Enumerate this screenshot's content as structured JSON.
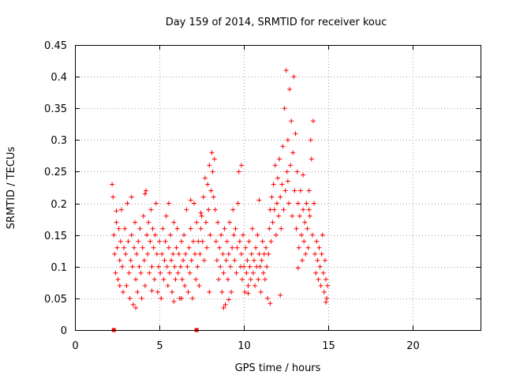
{
  "chart_data": {
    "type": "scatter",
    "title": "Day 159 of 2014, SRMTID for receiver kouc",
    "xlabel": "GPS time / hours",
    "ylabel": "SRMTID / TECUs",
    "xlim": [
      0,
      24
    ],
    "ylim": [
      0,
      0.45
    ],
    "x_ticks": [
      0,
      5,
      10,
      15,
      20
    ],
    "x_tick_labels": [
      "0",
      "5",
      "10",
      "15",
      "20"
    ],
    "y_ticks": [
      0,
      0.05,
      0.1,
      0.15,
      0.2,
      0.25,
      0.3,
      0.35,
      0.4,
      0.45
    ],
    "y_tick_labels": [
      "0",
      "0.05",
      "0.1",
      "0.15",
      "0.2",
      "0.25",
      "0.3",
      "0.35",
      "0.4",
      "0.45"
    ],
    "grid": true,
    "marker": "plus",
    "series": [
      {
        "name": "SRMTID",
        "color": "#ff0000",
        "points": [
          [
            2.2,
            0.23
          ],
          [
            2.25,
            0.21
          ],
          [
            2.3,
            0.15
          ],
          [
            2.35,
            0.12
          ],
          [
            2.4,
            0.09
          ],
          [
            2.45,
            0.17
          ],
          [
            2.5,
            0.13
          ],
          [
            2.55,
            0.08
          ],
          [
            2.6,
            0.16
          ],
          [
            2.65,
            0.11
          ],
          [
            2.7,
            0.14
          ],
          [
            2.75,
            0.19
          ],
          [
            2.8,
            0.1
          ],
          [
            2.85,
            0.06
          ],
          [
            2.9,
            0.13
          ],
          [
            2.95,
            0.16
          ],
          [
            3.0,
            0.12
          ],
          [
            3.05,
            0.07
          ],
          [
            3.1,
            0.2
          ],
          [
            3.15,
            0.14
          ],
          [
            3.2,
            0.09
          ],
          [
            3.25,
            0.05
          ],
          [
            3.3,
            0.11
          ],
          [
            3.35,
            0.15
          ],
          [
            3.4,
            0.1
          ],
          [
            3.45,
            0.04
          ],
          [
            3.5,
            0.13
          ],
          [
            3.55,
            0.17
          ],
          [
            3.6,
            0.08
          ],
          [
            3.65,
            0.12
          ],
          [
            3.7,
            0.06
          ],
          [
            3.75,
            0.14
          ],
          [
            3.8,
            0.1
          ],
          [
            3.85,
            0.16
          ],
          [
            3.9,
            0.09
          ],
          [
            3.95,
            0.05
          ],
          [
            4.0,
            0.13
          ],
          [
            4.05,
            0.18
          ],
          [
            4.1,
            0.11
          ],
          [
            4.15,
            0.07
          ],
          [
            4.2,
            0.22
          ],
          [
            4.25,
            0.15
          ],
          [
            4.3,
            0.12
          ],
          [
            4.35,
            0.17
          ],
          [
            4.4,
            0.09
          ],
          [
            4.45,
            0.14
          ],
          [
            4.5,
            0.19
          ],
          [
            4.55,
            0.1
          ],
          [
            4.6,
            0.16
          ],
          [
            4.65,
            0.13
          ],
          [
            4.7,
            0.08
          ],
          [
            4.75,
            0.15
          ],
          [
            4.8,
            0.2
          ],
          [
            4.85,
            0.12
          ],
          [
            4.9,
            0.06
          ],
          [
            4.95,
            0.1
          ],
          [
            5.0,
            0.14
          ],
          [
            5.05,
            0.09
          ],
          [
            5.1,
            0.05
          ],
          [
            5.15,
            0.12
          ],
          [
            5.2,
            0.16
          ],
          [
            5.25,
            0.08
          ],
          [
            5.3,
            0.11
          ],
          [
            5.35,
            0.14
          ],
          [
            5.4,
            0.18
          ],
          [
            5.45,
            0.1
          ],
          [
            5.5,
            0.07
          ],
          [
            5.55,
            0.13
          ],
          [
            5.6,
            0.09
          ],
          [
            5.65,
            0.15
          ],
          [
            5.7,
            0.11
          ],
          [
            5.75,
            0.06
          ],
          [
            5.8,
            0.12
          ],
          [
            5.85,
            0.17
          ],
          [
            5.9,
            0.1
          ],
          [
            5.95,
            0.08
          ],
          [
            6.0,
            0.13
          ],
          [
            6.05,
            0.16
          ],
          [
            6.1,
            0.09
          ],
          [
            6.15,
            0.12
          ],
          [
            6.2,
            0.05
          ],
          [
            6.25,
            0.1
          ],
          [
            6.3,
            0.14
          ],
          [
            6.35,
            0.08
          ],
          [
            6.4,
            0.11
          ],
          [
            6.45,
            0.15
          ],
          [
            6.5,
            0.07
          ],
          [
            6.55,
            0.12
          ],
          [
            6.6,
            0.19
          ],
          [
            6.65,
            0.1
          ],
          [
            6.7,
            0.06
          ],
          [
            6.75,
            0.13
          ],
          [
            6.8,
            0.09
          ],
          [
            6.85,
            0.16
          ],
          [
            6.9,
            0.11
          ],
          [
            6.95,
            0.05
          ],
          [
            7.0,
            0.14
          ],
          [
            7.05,
            0.2
          ],
          [
            7.1,
            0.12
          ],
          [
            7.15,
            0.08
          ],
          [
            7.2,
            0.17
          ],
          [
            7.25,
            0.1
          ],
          [
            7.3,
            0.14
          ],
          [
            7.35,
            0.07
          ],
          [
            7.4,
            0.12
          ],
          [
            7.45,
            0.16
          ],
          [
            7.5,
            0.18
          ],
          [
            7.55,
            0.14
          ],
          [
            7.6,
            0.21
          ],
          [
            7.65,
            0.11
          ],
          [
            7.7,
            0.24
          ],
          [
            7.75,
            0.17
          ],
          [
            7.8,
            0.13
          ],
          [
            7.85,
            0.23
          ],
          [
            7.9,
            0.19
          ],
          [
            7.95,
            0.26
          ],
          [
            8.0,
            0.15
          ],
          [
            8.05,
            0.22
          ],
          [
            8.1,
            0.28
          ],
          [
            8.15,
            0.25
          ],
          [
            8.2,
            0.21
          ],
          [
            8.25,
            0.27
          ],
          [
            8.3,
            0.19
          ],
          [
            8.35,
            0.14
          ],
          [
            8.4,
            0.11
          ],
          [
            8.45,
            0.17
          ],
          [
            8.5,
            0.08
          ],
          [
            8.55,
            0.13
          ],
          [
            8.6,
            0.1
          ],
          [
            8.65,
            0.15
          ],
          [
            8.7,
            0.06
          ],
          [
            8.75,
            0.12
          ],
          [
            8.8,
            0.09
          ],
          [
            8.85,
            0.16
          ],
          [
            8.9,
            0.04
          ],
          [
            8.95,
            0.11
          ],
          [
            9.0,
            0.14
          ],
          [
            9.05,
            0.08
          ],
          [
            9.1,
            0.12
          ],
          [
            9.15,
            0.17
          ],
          [
            9.2,
            0.1
          ],
          [
            9.25,
            0.06
          ],
          [
            9.3,
            0.13
          ],
          [
            9.35,
            0.19
          ],
          [
            9.4,
            0.15
          ],
          [
            9.45,
            0.11
          ],
          [
            9.5,
            0.16
          ],
          [
            9.55,
            0.09
          ],
          [
            9.6,
            0.13
          ],
          [
            9.65,
            0.2
          ],
          [
            9.7,
            0.25
          ],
          [
            9.75,
            0.14
          ],
          [
            9.8,
            0.1
          ],
          [
            9.85,
            0.12
          ],
          [
            9.9,
            0.08
          ],
          [
            9.95,
            0.15
          ],
          [
            10.0,
            0.1
          ],
          [
            10.05,
            0.06
          ],
          [
            10.1,
            0.13
          ],
          [
            10.15,
            0.09
          ],
          [
            10.2,
            0.11
          ],
          [
            10.25,
            0.07
          ],
          [
            10.3,
            0.14
          ],
          [
            10.35,
            0.1
          ],
          [
            10.4,
            0.08
          ],
          [
            10.45,
            0.12
          ],
          [
            10.5,
            0.16
          ],
          [
            10.55,
            0.09
          ],
          [
            10.6,
            0.11
          ],
          [
            10.65,
            0.07
          ],
          [
            10.7,
            0.13
          ],
          [
            10.75,
            0.1
          ],
          [
            10.8,
            0.15
          ],
          [
            10.85,
            0.08
          ],
          [
            10.9,
            0.12
          ],
          [
            10.95,
            0.1
          ],
          [
            11.0,
            0.06
          ],
          [
            11.05,
            0.11
          ],
          [
            11.1,
            0.14
          ],
          [
            11.15,
            0.09
          ],
          [
            11.2,
            0.12
          ],
          [
            11.25,
            0.08
          ],
          [
            11.3,
            0.13
          ],
          [
            11.35,
            0.1
          ],
          [
            11.4,
            0.05
          ],
          [
            11.45,
            0.12
          ],
          [
            11.5,
            0.16
          ],
          [
            11.55,
            0.19
          ],
          [
            11.6,
            0.14
          ],
          [
            11.65,
            0.21
          ],
          [
            11.7,
            0.17
          ],
          [
            11.75,
            0.23
          ],
          [
            11.8,
            0.19
          ],
          [
            11.85,
            0.26
          ],
          [
            11.9,
            0.15
          ],
          [
            11.95,
            0.2
          ],
          [
            12.0,
            0.24
          ],
          [
            12.05,
            0.18
          ],
          [
            12.1,
            0.27
          ],
          [
            12.15,
            0.21
          ],
          [
            12.2,
            0.16
          ],
          [
            12.25,
            0.23
          ],
          [
            12.3,
            0.29
          ],
          [
            12.35,
            0.19
          ],
          [
            12.4,
            0.35
          ],
          [
            12.45,
            0.22
          ],
          [
            12.5,
            0.41
          ],
          [
            12.55,
            0.25
          ],
          [
            12.6,
            0.3
          ],
          [
            12.65,
            0.2
          ],
          [
            12.7,
            0.38
          ],
          [
            12.75,
            0.26
          ],
          [
            12.8,
            0.33
          ],
          [
            12.85,
            0.18
          ],
          [
            12.9,
            0.28
          ],
          [
            12.95,
            0.4
          ],
          [
            13.0,
            0.22
          ],
          [
            13.05,
            0.31
          ],
          [
            13.1,
            0.16
          ],
          [
            13.15,
            0.25
          ],
          [
            13.2,
            0.2
          ],
          [
            13.25,
            0.13
          ],
          [
            13.3,
            0.18
          ],
          [
            13.35,
            0.22
          ],
          [
            13.4,
            0.15
          ],
          [
            13.45,
            0.11
          ],
          [
            13.5,
            0.19
          ],
          [
            13.55,
            0.14
          ],
          [
            13.6,
            0.17
          ],
          [
            13.65,
            0.12
          ],
          [
            13.7,
            0.2
          ],
          [
            13.75,
            0.16
          ],
          [
            13.8,
            0.13
          ],
          [
            13.85,
            0.22
          ],
          [
            13.9,
            0.18
          ],
          [
            13.95,
            0.3
          ],
          [
            14.0,
            0.27
          ],
          [
            14.05,
            0.15
          ],
          [
            14.1,
            0.33
          ],
          [
            14.15,
            0.2
          ],
          [
            14.2,
            0.12
          ],
          [
            14.25,
            0.09
          ],
          [
            14.3,
            0.14
          ],
          [
            14.35,
            0.11
          ],
          [
            14.4,
            0.08
          ],
          [
            14.45,
            0.13
          ],
          [
            14.5,
            0.1
          ],
          [
            14.55,
            0.07
          ],
          [
            14.6,
            0.12
          ],
          [
            14.65,
            0.15
          ],
          [
            14.7,
            0.09
          ],
          [
            14.75,
            0.06
          ],
          [
            14.8,
            0.11
          ],
          [
            14.85,
            0.08
          ],
          [
            14.9,
            0.05
          ],
          [
            14.95,
            0.07
          ],
          [
            3.35,
            0.21
          ],
          [
            4.15,
            0.215
          ],
          [
            5.55,
            0.2
          ],
          [
            6.85,
            0.205
          ],
          [
            7.45,
            0.185
          ],
          [
            9.85,
            0.26
          ],
          [
            10.9,
            0.205
          ],
          [
            12.6,
            0.235
          ],
          [
            13.5,
            0.245
          ],
          [
            13.85,
            0.19
          ],
          [
            3.6,
            0.035
          ],
          [
            5.85,
            0.045
          ],
          [
            8.8,
            0.035
          ],
          [
            11.55,
            0.042
          ],
          [
            14.85,
            0.044
          ],
          [
            6.3,
            0.05
          ],
          [
            9.1,
            0.048
          ],
          [
            12.15,
            0.055
          ],
          [
            2.65,
            0.07
          ],
          [
            4.55,
            0.062
          ],
          [
            7.95,
            0.06
          ],
          [
            10.25,
            0.058
          ],
          [
            13.2,
            0.098
          ],
          [
            2.45,
            0.188
          ]
        ],
        "bottom_marks": [
          [
            2.3,
            0
          ],
          [
            7.2,
            0
          ]
        ]
      }
    ]
  }
}
